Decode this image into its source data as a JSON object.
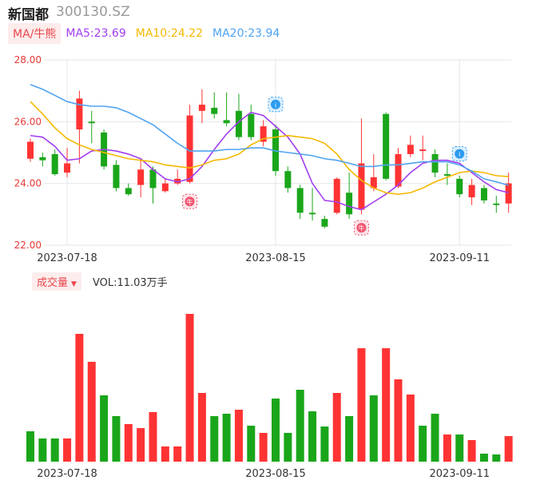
{
  "header": {
    "name": "新国都",
    "code": "300130.SZ"
  },
  "ma_legend": {
    "toggle_label": "MA/牛熊",
    "items": [
      {
        "text": "MA5:23.69",
        "color": "#a23ef0"
      },
      {
        "text": "MA10:24.22",
        "color": "#f5b800"
      },
      {
        "text": "MA20:23.94",
        "color": "#4fa3f0"
      }
    ]
  },
  "volume_legend": {
    "toggle_label": "成交量",
    "value_label": "VOL:11.03万手"
  },
  "colors": {
    "up": "#ff3333",
    "down": "#1aa61a",
    "axis_text": "#e53935",
    "grid": "#e6e6e6"
  },
  "chart_data": [
    {
      "type": "candlestick",
      "y_ticks": [
        "28.00",
        "26.00",
        "24.00",
        "22.00"
      ],
      "ylim": [
        22.0,
        28.0
      ],
      "x_tick_labels": [
        {
          "index": 3,
          "label": "2023-07-18"
        },
        {
          "index": 20,
          "label": "2023-08-15"
        },
        {
          "index": 35,
          "label": "2023-09-11"
        }
      ],
      "grid": true,
      "candles": [
        {
          "open": 24.8,
          "close": 25.35,
          "high": 25.45,
          "low": 24.7
        },
        {
          "open": 24.85,
          "close": 24.75,
          "high": 25.0,
          "low": 24.55
        },
        {
          "open": 24.95,
          "close": 24.3,
          "high": 25.1,
          "low": 24.25
        },
        {
          "open": 24.35,
          "close": 24.65,
          "high": 25.15,
          "low": 24.2
        },
        {
          "open": 25.75,
          "close": 26.75,
          "high": 27.0,
          "low": 24.65
        },
        {
          "open": 26.0,
          "close": 25.95,
          "high": 26.35,
          "low": 25.3
        },
        {
          "open": 25.65,
          "close": 24.55,
          "high": 25.75,
          "low": 24.45
        },
        {
          "open": 24.6,
          "close": 23.85,
          "high": 24.75,
          "low": 23.75
        },
        {
          "open": 23.85,
          "close": 23.65,
          "high": 24.0,
          "low": 23.6
        },
        {
          "open": 23.95,
          "close": 24.45,
          "high": 24.75,
          "low": 23.55
        },
        {
          "open": 24.45,
          "close": 23.85,
          "high": 24.55,
          "low": 23.35
        },
        {
          "open": 23.75,
          "close": 24.0,
          "high": 24.15,
          "low": 23.7
        },
        {
          "open": 24.0,
          "close": 24.15,
          "high": 24.45,
          "low": 23.95
        },
        {
          "open": 24.05,
          "close": 26.2,
          "high": 26.55,
          "low": 24.0
        },
        {
          "open": 26.35,
          "close": 26.55,
          "high": 27.05,
          "low": 25.95
        },
        {
          "open": 26.45,
          "close": 26.25,
          "high": 26.95,
          "low": 26.1
        },
        {
          "open": 26.05,
          "close": 25.95,
          "high": 26.95,
          "low": 25.85
        },
        {
          "open": 26.35,
          "close": 25.5,
          "high": 26.9,
          "low": 25.4
        },
        {
          "open": 26.25,
          "close": 25.5,
          "high": 26.55,
          "low": 25.4
        },
        {
          "open": 25.35,
          "close": 25.85,
          "high": 26.05,
          "low": 25.2
        },
        {
          "open": 25.75,
          "close": 24.4,
          "high": 25.9,
          "low": 24.25
        },
        {
          "open": 24.4,
          "close": 23.85,
          "high": 24.55,
          "low": 23.7
        },
        {
          "open": 23.85,
          "close": 23.05,
          "high": 23.95,
          "low": 22.85
        },
        {
          "open": 23.05,
          "close": 23.0,
          "high": 23.85,
          "low": 22.8
        },
        {
          "open": 22.85,
          "close": 22.6,
          "high": 22.95,
          "low": 22.55
        },
        {
          "open": 23.05,
          "close": 24.15,
          "high": 24.2,
          "low": 23.0
        },
        {
          "open": 23.7,
          "close": 23.0,
          "high": 24.35,
          "low": 22.85
        },
        {
          "open": 23.15,
          "close": 24.65,
          "high": 26.1,
          "low": 23.0
        },
        {
          "open": 23.85,
          "close": 24.2,
          "high": 24.95,
          "low": 23.75
        },
        {
          "open": 26.25,
          "close": 24.15,
          "high": 26.3,
          "low": 24.1
        },
        {
          "open": 23.9,
          "close": 24.95,
          "high": 25.15,
          "low": 23.85
        },
        {
          "open": 24.95,
          "close": 25.25,
          "high": 25.55,
          "low": 24.85
        },
        {
          "open": 25.05,
          "close": 25.1,
          "high": 25.55,
          "low": 24.75
        },
        {
          "open": 24.95,
          "close": 24.35,
          "high": 25.1,
          "low": 24.2
        },
        {
          "open": 24.3,
          "close": 24.25,
          "high": 24.65,
          "low": 23.95
        },
        {
          "open": 24.15,
          "close": 23.65,
          "high": 24.25,
          "low": 23.55
        },
        {
          "open": 23.55,
          "close": 23.95,
          "high": 24.15,
          "low": 23.3
        },
        {
          "open": 23.85,
          "close": 23.45,
          "high": 23.95,
          "low": 23.35
        },
        {
          "open": 23.35,
          "close": 23.3,
          "high": 23.6,
          "low": 23.05
        },
        {
          "open": 23.35,
          "close": 24.0,
          "high": 24.35,
          "low": 23.05
        }
      ],
      "ma_series": [
        {
          "name": "MA5",
          "color": "#a23ef0",
          "values": [
            25.55,
            25.5,
            25.2,
            24.75,
            24.8,
            25.05,
            25.1,
            25.05,
            24.95,
            24.8,
            24.45,
            24.15,
            24.05,
            24.15,
            24.55,
            25.1,
            25.6,
            26.0,
            26.3,
            26.2,
            25.85,
            25.5,
            24.95,
            24.0,
            23.45,
            23.4,
            23.25,
            23.15,
            23.4,
            23.65,
            23.95,
            24.35,
            24.65,
            24.75,
            24.75,
            24.65,
            24.35,
            24.05,
            23.8,
            23.7
          ]
        },
        {
          "name": "MA10",
          "color": "#f5b800",
          "values": [
            26.65,
            26.25,
            25.8,
            25.45,
            25.25,
            25.1,
            25.0,
            24.9,
            24.8,
            24.75,
            24.7,
            24.6,
            24.55,
            24.5,
            24.6,
            24.75,
            24.8,
            24.95,
            25.25,
            25.45,
            25.5,
            25.55,
            25.5,
            25.45,
            25.3,
            24.95,
            24.45,
            24.1,
            23.85,
            23.7,
            23.65,
            23.7,
            23.85,
            24.05,
            24.2,
            24.35,
            24.4,
            24.35,
            24.25,
            24.22
          ]
        },
        {
          "name": "MA20",
          "color": "#4fa3f0",
          "values": [
            27.2,
            27.05,
            26.85,
            26.65,
            26.55,
            26.5,
            26.5,
            26.45,
            26.3,
            26.1,
            25.9,
            25.6,
            25.3,
            25.05,
            25.05,
            25.05,
            25.1,
            25.1,
            25.15,
            25.15,
            25.05,
            25.0,
            24.95,
            24.9,
            24.8,
            24.75,
            24.65,
            24.55,
            24.55,
            24.6,
            24.6,
            24.65,
            24.7,
            24.7,
            24.7,
            24.6,
            24.4,
            24.15,
            24.05,
            23.94
          ]
        }
      ],
      "markers": [
        {
          "index": 13,
          "kind": "buy",
          "text": "牛",
          "price_anchor": 23.7
        },
        {
          "index": 20,
          "kind": "info",
          "text": "i",
          "price_anchor": 26.35
        },
        {
          "index": 27,
          "kind": "buy",
          "text": "牛",
          "price_anchor": 22.85
        },
        {
          "index": 35,
          "kind": "info",
          "text": "i",
          "price_anchor": 24.75
        }
      ]
    },
    {
      "type": "bar",
      "title": "成交量",
      "volumes": [
        3.8,
        2.9,
        2.9,
        2.9,
        16.0,
        12.5,
        8.3,
        5.7,
        4.7,
        4.2,
        6.2,
        1.9,
        1.9,
        18.5,
        8.6,
        5.7,
        6.0,
        6.5,
        4.5,
        3.6,
        7.9,
        3.6,
        9.0,
        6.3,
        4.4,
        8.6,
        5.7,
        14.2,
        8.3,
        14.2,
        10.3,
        8.4,
        4.5,
        6.0,
        3.4,
        3.4,
        2.7,
        1.0,
        0.9,
        3.2
      ],
      "up_flags": [
        false,
        false,
        false,
        true,
        true,
        true,
        false,
        false,
        true,
        true,
        true,
        true,
        true,
        true,
        true,
        false,
        false,
        true,
        false,
        true,
        false,
        false,
        false,
        false,
        false,
        true,
        false,
        true,
        false,
        true,
        true,
        true,
        false,
        false,
        true,
        false,
        true,
        false,
        false,
        true
      ]
    }
  ]
}
